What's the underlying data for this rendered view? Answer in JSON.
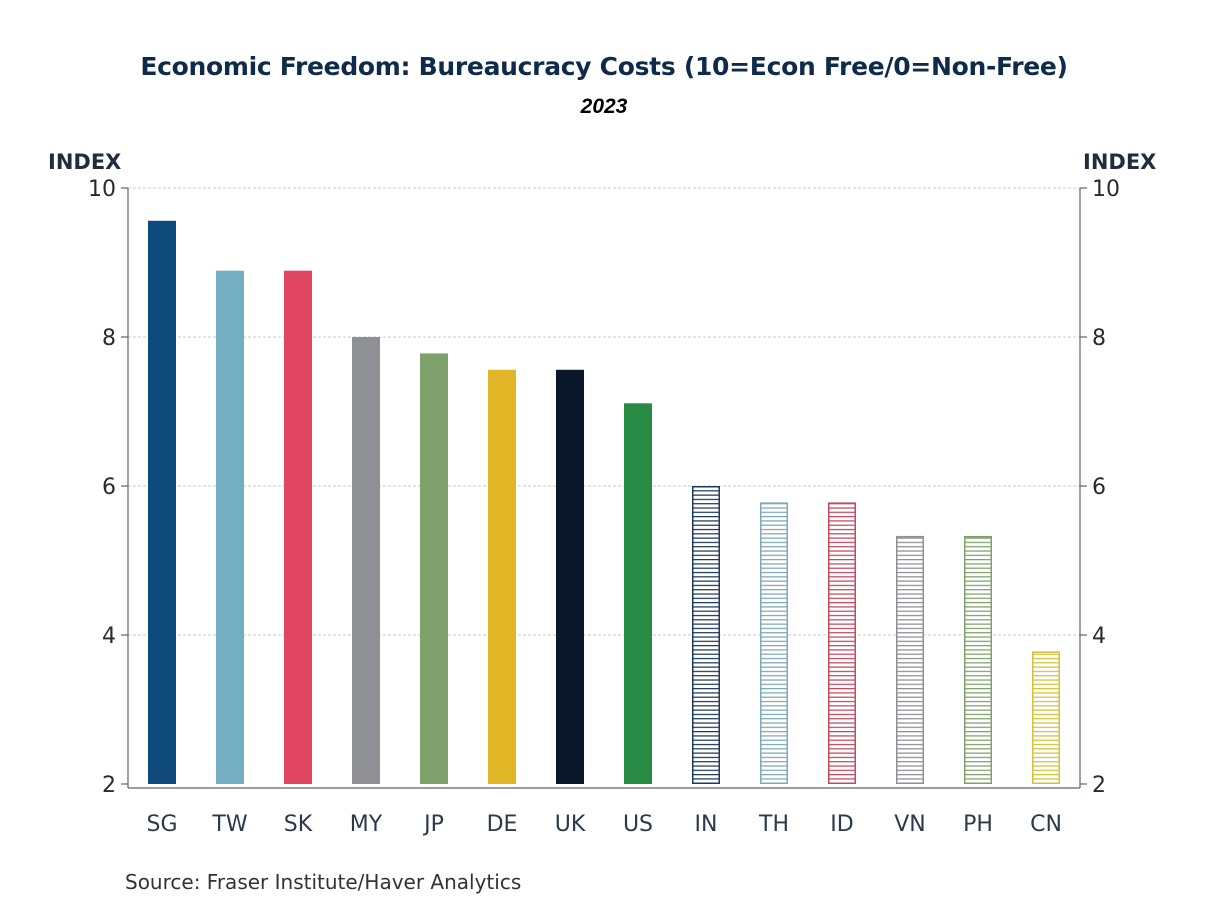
{
  "chart_data": {
    "type": "bar",
    "title": "Economic Freedom: Bureaucracy Costs (10=Econ Free/0=Non-Free)",
    "subtitle": "2023",
    "ylabel_left": "INDEX",
    "ylabel_right": "INDEX",
    "xlabel": "",
    "ylim": [
      2,
      10
    ],
    "yticks": [
      2,
      4,
      6,
      8,
      10
    ],
    "grid": true,
    "categories": [
      "SG",
      "TW",
      "SK",
      "MY",
      "JP",
      "DE",
      "UK",
      "US",
      "IN",
      "TH",
      "ID",
      "VN",
      "PH",
      "CN"
    ],
    "values": [
      9.56,
      8.89,
      8.89,
      8.0,
      7.78,
      7.56,
      7.56,
      7.11,
      6.0,
      5.78,
      5.78,
      5.33,
      5.33,
      3.78
    ],
    "bar_styles": [
      {
        "color": "#0e4a7b",
        "fill": "solid"
      },
      {
        "color": "#74afc4",
        "fill": "solid"
      },
      {
        "color": "#df4560",
        "fill": "solid"
      },
      {
        "color": "#8f8f96",
        "fill": "solid"
      },
      {
        "color": "#7ea16b",
        "fill": "solid"
      },
      {
        "color": "#e1b626",
        "fill": "solid"
      },
      {
        "color": "#0b172b",
        "fill": "solid"
      },
      {
        "color": "#278b43",
        "fill": "solid"
      },
      {
        "color": "#1e3a5a",
        "fill": "hatched"
      },
      {
        "color": "#7fa9b5",
        "fill": "hatched"
      },
      {
        "color": "#c24a60",
        "fill": "hatched"
      },
      {
        "color": "#8f8f96",
        "fill": "hatched"
      },
      {
        "color": "#7ea16b",
        "fill": "hatched"
      },
      {
        "color": "#d4c23a",
        "fill": "hatched"
      }
    ],
    "source": "Source:  Fraser Institute/Haver Analytics"
  }
}
